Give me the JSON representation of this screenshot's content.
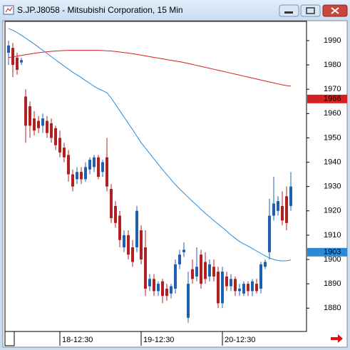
{
  "chart_data": {
    "type": "candlestick",
    "title": "S.JP.J8058 - Mitsubishi Corporation, 15 Min",
    "categories": [
      null,
      null,
      null,
      null,
      null,
      null,
      null,
      null,
      null,
      null,
      null,
      null,
      "18-12:30",
      null,
      null,
      null,
      null,
      null,
      null,
      null,
      null,
      null,
      null,
      null,
      null,
      null,
      null,
      null,
      null,
      null,
      null,
      "19-12:30",
      null,
      null,
      null,
      null,
      null,
      null,
      null,
      null,
      null,
      null,
      null,
      null,
      null,
      null,
      null,
      null,
      null,
      null,
      "20-12:30",
      null,
      null,
      null,
      null,
      null,
      null,
      null,
      null,
      null,
      null,
      null,
      null,
      null,
      null,
      null,
      null
    ],
    "open": [
      1985,
      1987,
      1983,
      1981,
      1967,
      1963,
      1958,
      1957,
      1955,
      1957,
      1956,
      1954,
      1950,
      1946,
      1943,
      1935,
      1933,
      1936,
      1933,
      1937,
      1938,
      1942,
      1936,
      1942,
      1929,
      1922,
      1918,
      1905,
      1910,
      1905,
      1905,
      1912,
      1905,
      1889,
      1892,
      1887,
      1891,
      1888,
      1886,
      1888,
      1898,
      1903,
      1876,
      1896,
      1893,
      1902,
      1899,
      1893,
      1897,
      1895,
      1882,
      1893,
      1889,
      1892,
      1887,
      1886,
      1890,
      1887,
      1890,
      1888,
      1897,
      1903,
      1918,
      1920,
      1922,
      1926,
      1922
    ],
    "high": [
      1990,
      1989,
      1985,
      1983,
      1970,
      1965,
      1961,
      1959,
      1960,
      1959,
      1958,
      1955,
      1953,
      1948,
      1945,
      1937,
      1938,
      1938,
      1940,
      1942,
      1943,
      1943,
      1941,
      1950,
      1931,
      1924,
      1920,
      1912,
      1912,
      1908,
      1922,
      1914,
      1912,
      1894,
      1894,
      1891,
      1892,
      1890,
      1890,
      1900,
      1904,
      1907,
      1895,
      1900,
      1905,
      1904,
      1903,
      1900,
      1900,
      1897,
      1897,
      1895,
      1894,
      1893,
      1890,
      1891,
      1891,
      1892,
      1892,
      1899,
      1900,
      1925,
      1934,
      1926,
      1928,
      1930,
      1936
    ],
    "low": [
      1980,
      1975,
      1976,
      1980,
      1948,
      1950,
      1951,
      1952,
      1952,
      1950,
      1948,
      1945,
      1942,
      1940,
      1932,
      1928,
      1931,
      1931,
      1932,
      1935,
      1936,
      1933,
      1934,
      1928,
      1915,
      1913,
      1905,
      1903,
      1900,
      1897,
      1903,
      1898,
      1885,
      1887,
      1885,
      1885,
      1882,
      1883,
      1884,
      1886,
      1896,
      1901,
      1874,
      1890,
      1891,
      1888,
      1890,
      1891,
      1891,
      1880,
      1880,
      1887,
      1887,
      1885,
      1885,
      1885,
      1885,
      1885,
      1886,
      1886,
      1896,
      1900,
      1916,
      1918,
      1914,
      1912,
      1920
    ],
    "close": [
      1988,
      1980,
      1978,
      1982,
      1955,
      1955,
      1953,
      1954,
      1958,
      1952,
      1950,
      1947,
      1944,
      1942,
      1935,
      1930,
      1936,
      1933,
      1938,
      1941,
      1942,
      1934,
      1940,
      1930,
      1917,
      1915,
      1908,
      1910,
      1902,
      1899,
      1920,
      1900,
      1888,
      1892,
      1887,
      1890,
      1885,
      1885,
      1889,
      1898,
      1902,
      1904,
      1890,
      1892,
      1897,
      1890,
      1892,
      1898,
      1893,
      1882,
      1895,
      1889,
      1892,
      1887,
      1888,
      1890,
      1887,
      1891,
      1887,
      1898,
      1899,
      1918,
      1923,
      1924,
      1916,
      1915,
      1930
    ],
    "up_color": "#1f5fb0",
    "down_color": "#b02020",
    "lines": [
      {
        "color": "#d42020",
        "values": [
          1983.0,
          1983.3,
          1983.6,
          1983.9,
          1984.2,
          1984.5,
          1984.8,
          1985.0,
          1985.2,
          1985.4,
          1985.6,
          1985.7,
          1985.8,
          1985.9,
          1986.0,
          1986.0,
          1986.0,
          1986.0,
          1986.0,
          1986.0,
          1986.0,
          1986.0,
          1985.9,
          1985.8,
          1985.7,
          1985.5,
          1985.3,
          1985.1,
          1984.9,
          1984.6,
          1984.3,
          1984.0,
          1983.7,
          1983.4,
          1983.1,
          1982.8,
          1982.5,
          1982.2,
          1981.9,
          1981.6,
          1981.3,
          1981.0,
          1980.6,
          1980.2,
          1979.8,
          1979.4,
          1979.0,
          1978.6,
          1978.2,
          1977.8,
          1977.4,
          1977.0,
          1976.6,
          1976.2,
          1975.8,
          1975.4,
          1975.0,
          1974.6,
          1974.2,
          1973.8,
          1973.4,
          1973.0,
          1972.6,
          1972.2,
          1971.8,
          1971.5,
          1971.3
        ]
      },
      {
        "color": "#2a8ad8",
        "values": [
          1995,
          1994.2,
          1993.3,
          1992.2,
          1991,
          1989.8,
          1988.6,
          1987.3,
          1986,
          1984.7,
          1983.4,
          1982.1,
          1980.8,
          1979.5,
          1978.3,
          1977,
          1975.9,
          1974.8,
          1973.6,
          1972.4,
          1971.2,
          1970.2,
          1969.4,
          1968.6,
          1966.4,
          1963.8,
          1961.2,
          1958.6,
          1956,
          1953.4,
          1950.7,
          1948,
          1945.8,
          1943.6,
          1941.4,
          1939.2,
          1937,
          1934.9,
          1932.8,
          1930.8,
          1929,
          1927.3,
          1925.6,
          1923.9,
          1922.3,
          1920.6,
          1919,
          1917.5,
          1916,
          1914.6,
          1913.1,
          1911.6,
          1910.1,
          1908.7,
          1907.4,
          1906.4,
          1905.5,
          1904.5,
          1903.5,
          1902.5,
          1901.5,
          1900.6,
          1900,
          1899.6,
          1899.4,
          1899.5,
          1899.8
        ]
      }
    ],
    "markers": [
      {
        "value": 1966,
        "color": "#d42020"
      },
      {
        "value": 1903,
        "color": "#2a8ad8"
      }
    ],
    "ylim": [
      1870.4,
      1997.9
    ],
    "yticks": [
      1880,
      1890,
      1900,
      1910,
      1920,
      1930,
      1940,
      1950,
      1960,
      1970,
      1980,
      1990
    ]
  }
}
